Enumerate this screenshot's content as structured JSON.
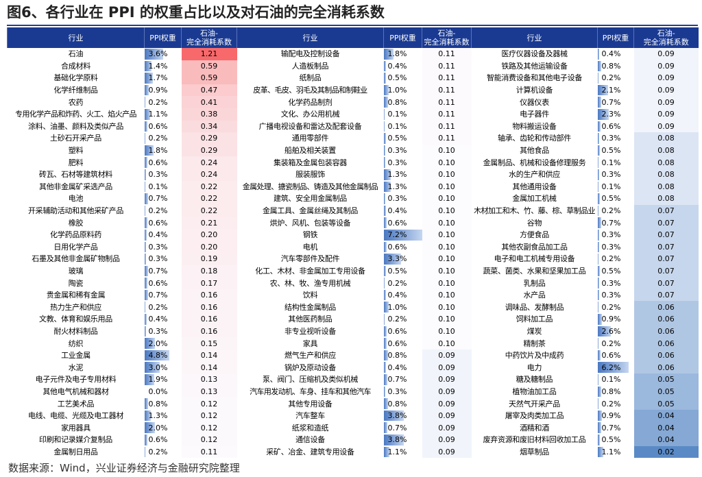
{
  "title": "图6、各行业在 PPI 的权重占比以及对石油的完全消耗系数",
  "source": "数据来源：Wind，兴业证券经济与金融研究院整理",
  "chart_data": {
    "type": "table",
    "columns": [
      "行业",
      "PPI权重",
      "石油-\n完全消耗系数"
    ],
    "groups": [
      {
        "rows": [
          [
            "石油",
            "3.6%",
            "1.21"
          ],
          [
            "合成材料",
            "1.4%",
            "0.59"
          ],
          [
            "基础化学原料",
            "1.7%",
            "0.59"
          ],
          [
            "化学纤维制品",
            "0.9%",
            "0.47"
          ],
          [
            "农药",
            "0.2%",
            "0.41"
          ],
          [
            "专用化学产品和炸药、火工、焰火产品",
            "1.1%",
            "0.38"
          ],
          [
            "涂料、油墨、颜料及类似产品",
            "0.6%",
            "0.34"
          ],
          [
            "土砂石开采产品",
            "0.2%",
            "0.29"
          ],
          [
            "塑料",
            "1.8%",
            "0.29"
          ],
          [
            "肥料",
            "0.6%",
            "0.24"
          ],
          [
            "砖瓦、石材等建筑材料",
            "0.3%",
            "0.24"
          ],
          [
            "其他非金属矿采选产品",
            "0.1%",
            "0.22"
          ],
          [
            "电池",
            "0.7%",
            "0.22"
          ],
          [
            "开采辅助活动和其他采矿产品",
            "0.2%",
            "0.22"
          ],
          [
            "橡胶",
            "0.6%",
            "0.21"
          ],
          [
            "化学药品原料药",
            "0.4%",
            "0.20"
          ],
          [
            "日用化学产品",
            "0.3%",
            "0.20"
          ],
          [
            "石墨及其他非金属矿物制品",
            "0.3%",
            "0.19"
          ],
          [
            "玻璃",
            "0.7%",
            "0.18"
          ],
          [
            "陶瓷",
            "0.6%",
            "0.17"
          ],
          [
            "贵金属和稀有金属",
            "0.7%",
            "0.16"
          ],
          [
            "热力生产和供应",
            "0.2%",
            "0.16"
          ],
          [
            "文教、体育和娱乐用品",
            "0.4%",
            "0.16"
          ],
          [
            "耐火材料制品",
            "0.3%",
            "0.16"
          ],
          [
            "纺织",
            "2.0%",
            "0.15"
          ],
          [
            "工业金属",
            "4.8%",
            "0.14"
          ],
          [
            "水泥",
            "3.0%",
            "0.14"
          ],
          [
            "电子元件及电子专用材料",
            "1.9%",
            "0.13"
          ],
          [
            "其他电气机械和器材",
            "0.0%",
            "0.13"
          ],
          [
            "工艺美术品",
            "0.8%",
            "0.12"
          ],
          [
            "电线、电缆、光缆及电工器材",
            "1.3%",
            "0.12"
          ],
          [
            "家用器具",
            "2.0%",
            "0.12"
          ],
          [
            "印刷和记录媒介复制品",
            "0.6%",
            "0.12"
          ],
          [
            "金属制日用品",
            "0.2%",
            "0.11"
          ]
        ]
      },
      {
        "rows": [
          [
            "输配电及控制设备",
            "1.8%",
            "0.11"
          ],
          [
            "人造板制品",
            "0.4%",
            "0.11"
          ],
          [
            "纸制品",
            "0.5%",
            "0.11"
          ],
          [
            "皮革、毛皮、羽毛及其制品和制鞋业",
            "1.0%",
            "0.11"
          ],
          [
            "化学药品制剂",
            "0.8%",
            "0.11"
          ],
          [
            "文化、办公用机械",
            "0.1%",
            "0.11"
          ],
          [
            "广播电视设备和雷达及配套设备",
            "0.1%",
            "0.11"
          ],
          [
            "通用零部件",
            "0.5%",
            "0.11"
          ],
          [
            "船舶及相关装置",
            "0.3%",
            "0.10"
          ],
          [
            "集装箱及金属包装容器",
            "0.3%",
            "0.10"
          ],
          [
            "服装服饰",
            "1.3%",
            "0.10"
          ],
          [
            "金属处理、搪瓷制品、铸造及其他金属制品",
            "1.3%",
            "0.10"
          ],
          [
            "建筑、安全用金属制品",
            "0.3%",
            "0.10"
          ],
          [
            "金属工具、金属丝绳及其制品",
            "0.4%",
            "0.10"
          ],
          [
            "烘炉、风机、包装等设备",
            "0.6%",
            "0.10"
          ],
          [
            "钢铁",
            "7.2%",
            "0.10"
          ],
          [
            "电机",
            "0.6%",
            "0.10"
          ],
          [
            "汽车零部件及配件",
            "3.3%",
            "0.10"
          ],
          [
            "化工、木材、非金属加工专用设备",
            "0.5%",
            "0.10"
          ],
          [
            "农、林、牧、渔专用机械",
            "0.2%",
            "0.10"
          ],
          [
            "饮料",
            "0.4%",
            "0.10"
          ],
          [
            "结构性金属制品",
            "1.0%",
            "0.10"
          ],
          [
            "其他医药制品",
            "0.2%",
            "0.10"
          ],
          [
            "非专业视听设备",
            "0.6%",
            "0.10"
          ],
          [
            "家具",
            "0.6%",
            "0.10"
          ],
          [
            "燃气生产和供应",
            "0.8%",
            "0.09"
          ],
          [
            "锅炉及原动设备",
            "0.4%",
            "0.09"
          ],
          [
            "泵、阀门、压缩机及类似机械",
            "0.7%",
            "0.09"
          ],
          [
            "汽车用发动机、车身、挂车和其他汽车",
            "0.3%",
            "0.09"
          ],
          [
            "其他专用设备",
            "0.8%",
            "0.09"
          ],
          [
            "汽车整车",
            "3.8%",
            "0.09"
          ],
          [
            "纸浆和造纸",
            "0.7%",
            "0.09"
          ],
          [
            "通信设备",
            "3.8%",
            "0.09"
          ],
          [
            "采矿、冶金、建筑专用设备",
            "1.1%",
            "0.09"
          ]
        ]
      },
      {
        "rows": [
          [
            "医疗仪器设备及器械",
            "0.4%",
            "0.09"
          ],
          [
            "铁路及其他运输设备",
            "0.8%",
            "0.09"
          ],
          [
            "智能消费设备和其他电子设备",
            "0.2%",
            "0.09"
          ],
          [
            "计算机设备",
            "2.1%",
            "0.09"
          ],
          [
            "仪器仪表",
            "0.7%",
            "0.09"
          ],
          [
            "电子器件",
            "2.3%",
            "0.09"
          ],
          [
            "物料搬运设备",
            "0.6%",
            "0.09"
          ],
          [
            "轴承、齿轮和传动部件",
            "0.3%",
            "0.08"
          ],
          [
            "其他食品",
            "0.5%",
            "0.08"
          ],
          [
            "金属制品、机械和设备修理服务",
            "0.1%",
            "0.08"
          ],
          [
            "水的生产和供应",
            "0.3%",
            "0.08"
          ],
          [
            "其他通用设备",
            "0.1%",
            "0.08"
          ],
          [
            "金属加工机械",
            "0.5%",
            "0.08"
          ],
          [
            "木材加工和木、竹、藤、棕、草制品业",
            "0.2%",
            "0.07"
          ],
          [
            "谷物",
            "0.7%",
            "0.07"
          ],
          [
            "方便食品",
            "0.3%",
            "0.07"
          ],
          [
            "其他农副食品加工品",
            "0.3%",
            "0.07"
          ],
          [
            "电子和电工机械专用设备",
            "0.2%",
            "0.07"
          ],
          [
            "蔬菜、菌类、水果和坚果加工品",
            "0.5%",
            "0.07"
          ],
          [
            "乳制品",
            "0.3%",
            "0.07"
          ],
          [
            "水产品",
            "0.3%",
            "0.07"
          ],
          [
            "调味品、发酵制品",
            "0.2%",
            "0.06"
          ],
          [
            "饲料加工品",
            "0.9%",
            "0.06"
          ],
          [
            "煤炭",
            "2.6%",
            "0.06"
          ],
          [
            "精制茶",
            "0.2%",
            "0.06"
          ],
          [
            "中药饮片及中成药",
            "0.6%",
            "0.06"
          ],
          [
            "电力",
            "6.2%",
            "0.06"
          ],
          [
            "糖及糖制品",
            "0.1%",
            "0.05"
          ],
          [
            "植物油加工品",
            "0.8%",
            "0.05"
          ],
          [
            "天然气开采产品",
            "0.2%",
            "0.05"
          ],
          [
            "屠宰及肉类加工品",
            "0.9%",
            "0.04"
          ],
          [
            "酒精和酒",
            "0.7%",
            "0.04"
          ],
          [
            "废弃资源和废旧材料回收加工品",
            "0.5%",
            "0.04"
          ],
          [
            "烟草制品",
            "1.1%",
            "0.02"
          ]
        ]
      }
    ],
    "encoding": {
      "ppi_bar_color": "#4a78c2",
      "consumption_colorscale": {
        "max_color": "#f8696b",
        "mid_color": "#fcfcff",
        "min_color": "#5a8ac6"
      }
    }
  }
}
